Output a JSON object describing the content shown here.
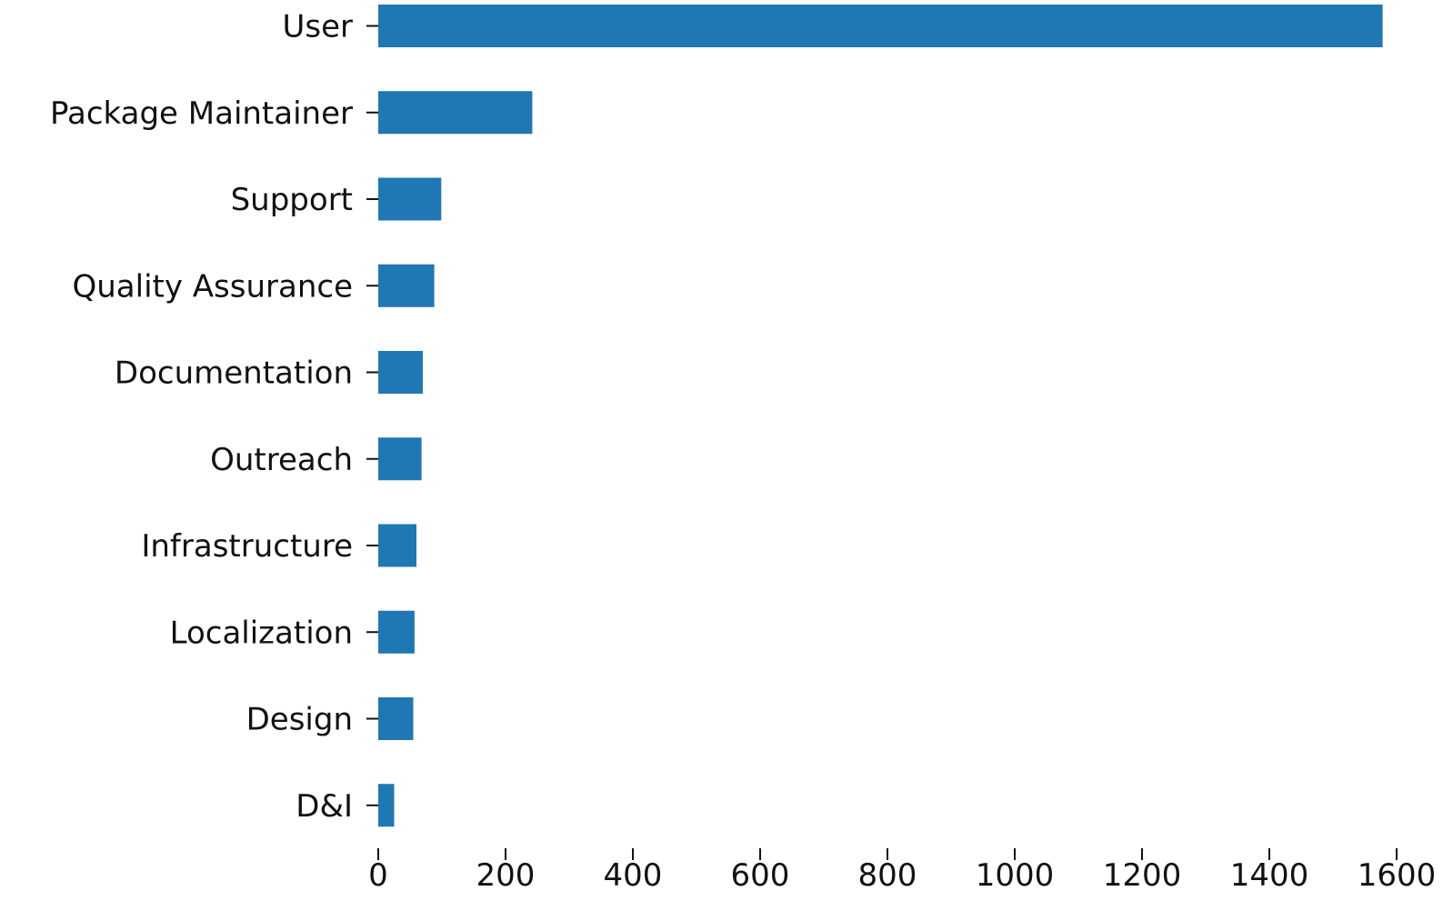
{
  "chart_data": {
    "type": "bar",
    "orientation": "horizontal",
    "title": "",
    "xlabel": "",
    "ylabel": "",
    "categories": [
      "User",
      "Package Maintainer",
      "Support",
      "Quality Assurance",
      "Documentation",
      "Outreach",
      "Infrastructure",
      "Localization",
      "Design",
      "D&I"
    ],
    "values": [
      1578,
      242,
      99,
      88,
      70,
      68,
      60,
      57,
      55,
      25
    ],
    "xlim": [
      0,
      1600
    ],
    "x_ticks": [
      0,
      200,
      400,
      600,
      800,
      1000,
      1200,
      1400,
      1600
    ],
    "x_tick_labels": [
      "0",
      "200",
      "400",
      "600",
      "800",
      "1000",
      "1200",
      "1400",
      "1600"
    ],
    "grid": false,
    "legend": "none",
    "bar_color": "#1f77b4"
  }
}
